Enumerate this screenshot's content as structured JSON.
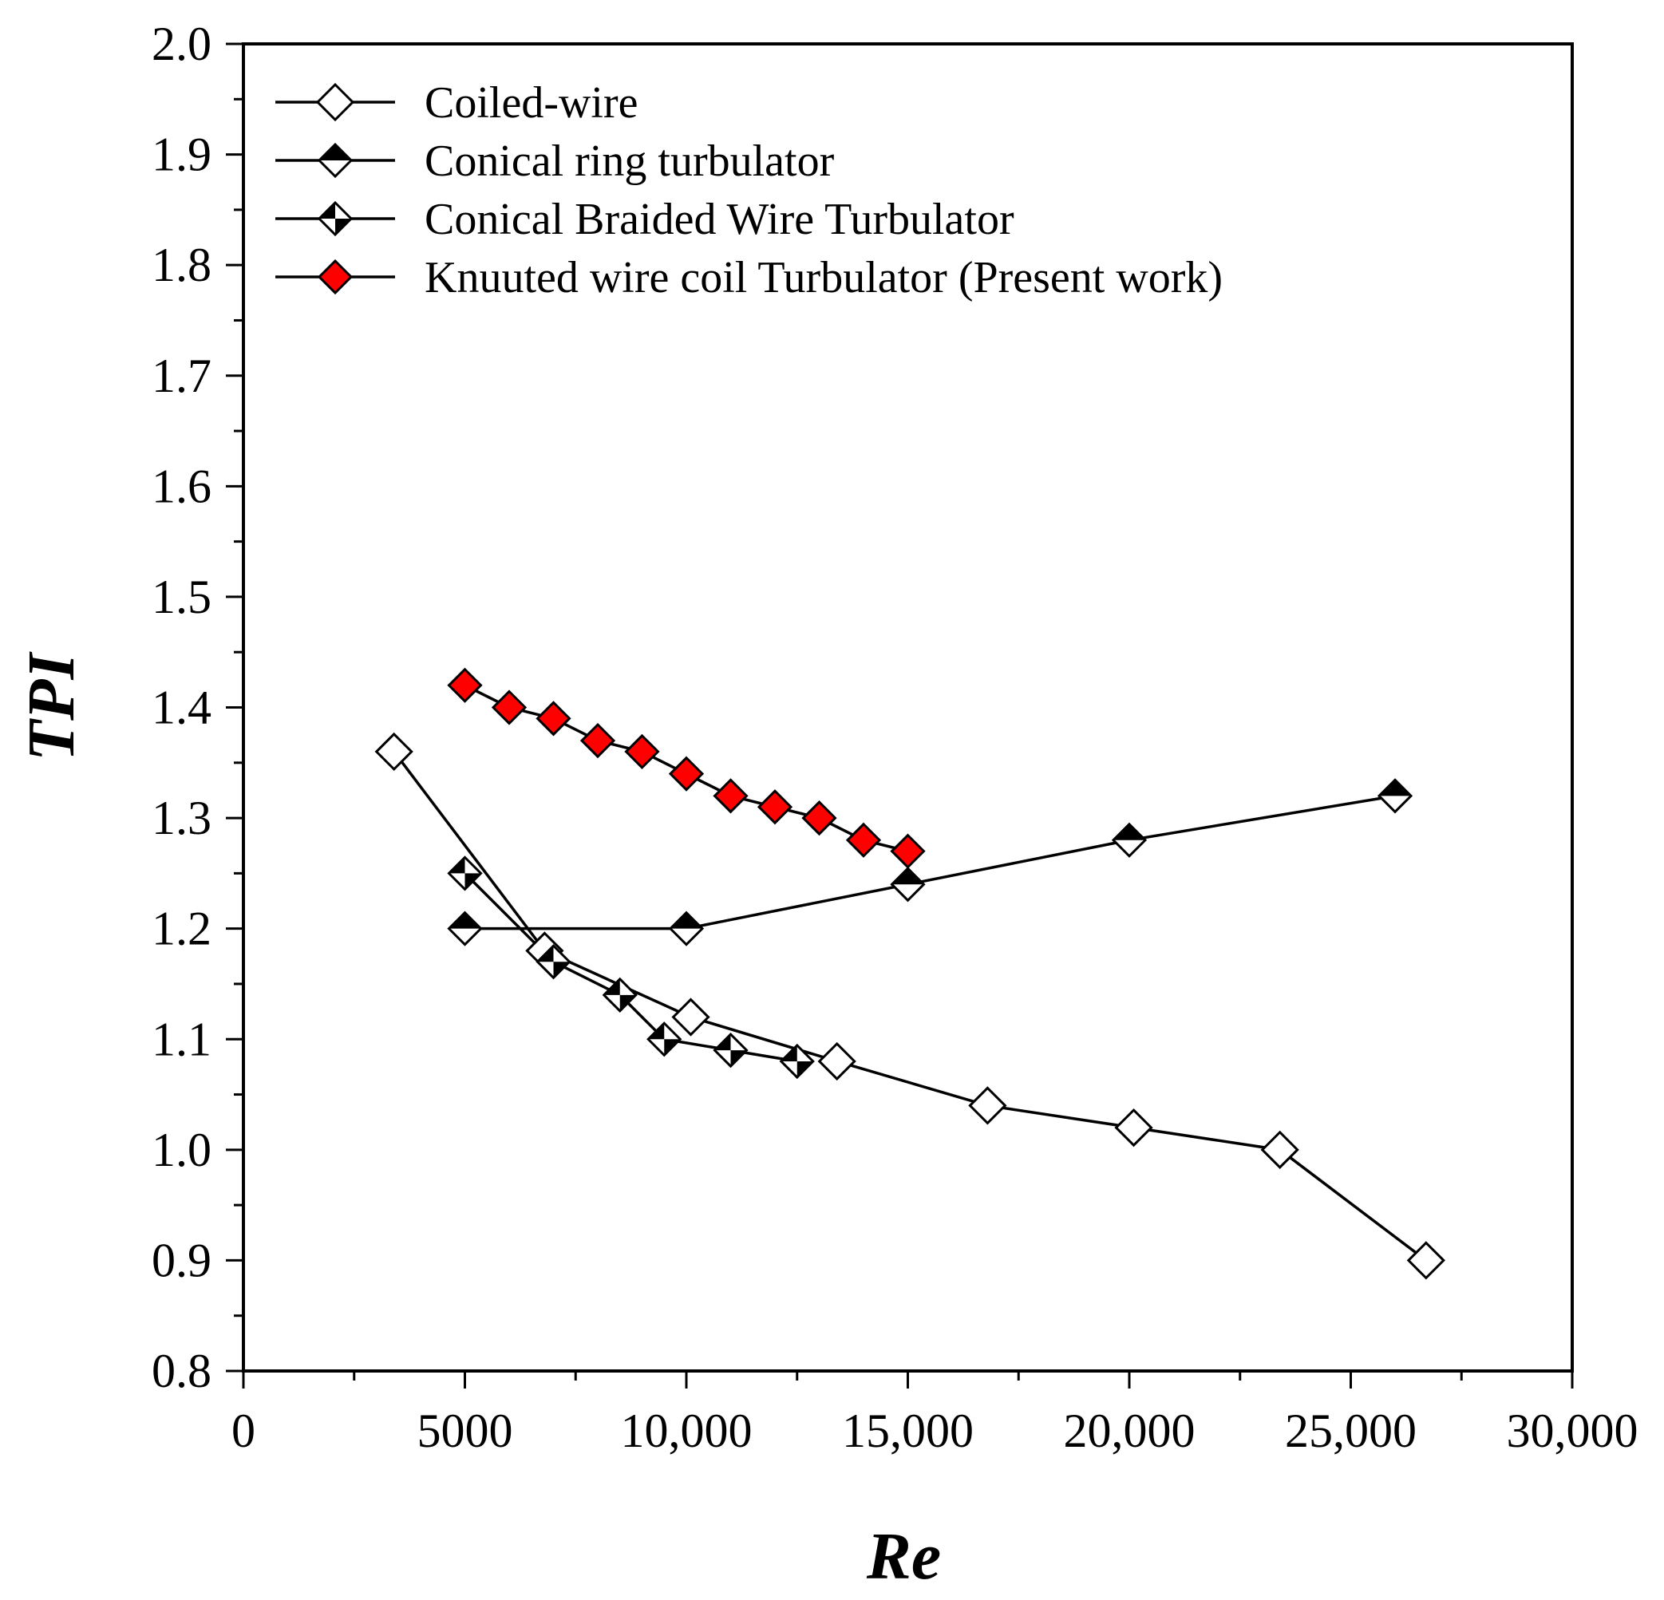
{
  "chart_data": {
    "type": "line",
    "title": "",
    "xlabel": "Re",
    "ylabel": "TPI",
    "xlim": [
      0,
      30000
    ],
    "ylim": [
      0.8,
      2.0
    ],
    "x_ticks": [
      0,
      5000,
      10000,
      15000,
      20000,
      25000,
      30000
    ],
    "x_tick_labels": [
      "0",
      "5000",
      "10,000",
      "15,000",
      "20,000",
      "25,000",
      "30,000"
    ],
    "y_ticks": [
      0.8,
      0.9,
      1.0,
      1.1,
      1.2,
      1.3,
      1.4,
      1.5,
      1.6,
      1.7,
      1.8,
      1.9,
      2.0
    ],
    "y_tick_labels": [
      "0.8",
      "0.9",
      "1.0",
      "1.1",
      "1.2",
      "1.3",
      "1.4",
      "1.5",
      "1.6",
      "1.7",
      "1.8",
      "1.9",
      "2.0"
    ],
    "grid": false,
    "legend_position": "top-left",
    "series": [
      {
        "name": "Coiled-wire",
        "marker": "diamond-open",
        "fill": "#ffffff",
        "x": [
          3400,
          6800,
          10100,
          13400,
          16800,
          20100,
          23400,
          26700
        ],
        "y": [
          1.36,
          1.18,
          1.12,
          1.08,
          1.04,
          1.02,
          1.0,
          0.9
        ]
      },
      {
        "name": "Conical ring turbulator",
        "marker": "diamond-half",
        "fill": "#000000",
        "x": [
          5000,
          10000,
          15000,
          20000,
          26000
        ],
        "y": [
          1.2,
          1.2,
          1.24,
          1.28,
          1.32
        ]
      },
      {
        "name": "Conical Braided Wire Turbulator",
        "marker": "diamond-quarter",
        "fill": "#000000",
        "x": [
          5000,
          7000,
          8500,
          9500,
          11000,
          12500
        ],
        "y": [
          1.25,
          1.17,
          1.14,
          1.1,
          1.09,
          1.08
        ]
      },
      {
        "name": "Knuuted wire coil Turbulator (Present work)",
        "marker": "diamond-filled",
        "fill": "#ff0000",
        "x": [
          5000,
          6000,
          7000,
          8000,
          9000,
          10000,
          11000,
          12000,
          13000,
          14000,
          15000
        ],
        "y": [
          1.42,
          1.4,
          1.39,
          1.37,
          1.36,
          1.34,
          1.32,
          1.31,
          1.3,
          1.28,
          1.27
        ]
      }
    ]
  }
}
